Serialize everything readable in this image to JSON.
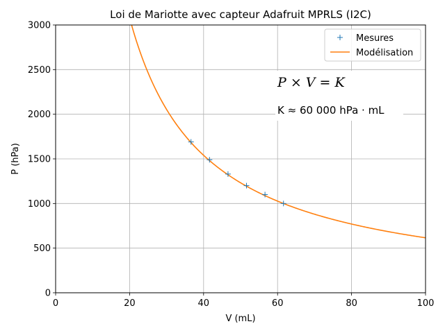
{
  "chart_data": {
    "type": "scatter",
    "title": "Loi de Mariotte avec capteur Adafruit MPRLS (I2C)",
    "xlabel": "V (mL)",
    "ylabel": "P (hPa)",
    "xlim": [
      0,
      100
    ],
    "ylim": [
      0,
      3000
    ],
    "xticks": [
      0,
      20,
      40,
      60,
      80,
      100
    ],
    "yticks": [
      0,
      500,
      1000,
      1500,
      2000,
      2500,
      3000
    ],
    "grid": true,
    "legend_position": "top-right",
    "series": [
      {
        "name": "Mesures",
        "kind": "markers",
        "marker": "plus",
        "color": "#1f77b4",
        "x": [
          36.6,
          41.6,
          46.6,
          51.6,
          56.6,
          61.6
        ],
        "y": [
          1690,
          1490,
          1330,
          1200,
          1100,
          1000
        ]
      },
      {
        "name": "Modélisation",
        "kind": "line",
        "color": "#ff7f0e",
        "function": "P = K / V",
        "K": 61600,
        "x_range": [
          20,
          100
        ]
      }
    ],
    "annotations": {
      "equation": "P × V = K",
      "constant": "K ≈ 60 000 hPa · mL"
    }
  }
}
